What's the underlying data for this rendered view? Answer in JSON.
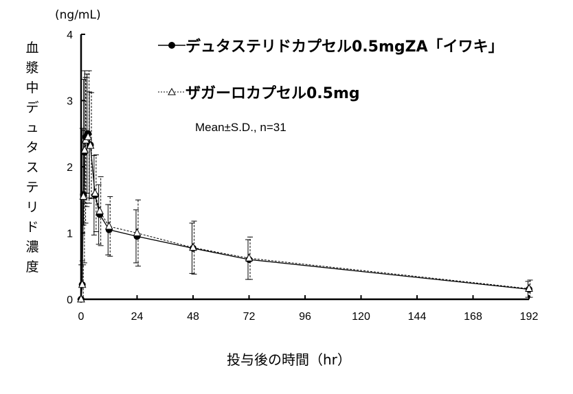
{
  "chart_data": {
    "type": "line",
    "title": "",
    "xlabel": "投与後の時間（hr）",
    "ylabel": "血漿中デュタステリド濃度",
    "yunit": "(ng/mL)",
    "xlim": [
      0,
      192
    ],
    "ylim": [
      0,
      4
    ],
    "xticks": [
      0,
      24,
      48,
      72,
      96,
      120,
      144,
      168,
      192
    ],
    "yticks": [
      0,
      1,
      2,
      3,
      4
    ],
    "annotation": "Mean±S.D., n=31",
    "legend_position": "top-right",
    "x": [
      0,
      0.5,
      1,
      1.5,
      2,
      3,
      4,
      6,
      8,
      12,
      24,
      48,
      72,
      192
    ],
    "series": [
      {
        "name": "デュタステリドカプセル0.5mgZA「イワキ」",
        "marker": "filled-circle",
        "line": "solid",
        "values": [
          0,
          0.22,
          1.58,
          2.22,
          2.45,
          2.5,
          2.33,
          1.57,
          1.28,
          1.05,
          0.95,
          0.77,
          0.6,
          0.15
        ],
        "sd": [
          0,
          0.3,
          1.0,
          1.1,
          1.0,
          0.9,
          0.8,
          0.6,
          0.45,
          0.38,
          0.4,
          0.38,
          0.3,
          0.12
        ]
      },
      {
        "name": "ザガーロカプセル0.5mg",
        "marker": "open-triangle",
        "line": "dashed",
        "values": [
          0,
          0.22,
          1.55,
          2.25,
          2.4,
          2.45,
          2.32,
          1.6,
          1.33,
          1.1,
          1.0,
          0.78,
          0.62,
          0.16
        ],
        "sd": [
          0,
          0.3,
          1.0,
          1.1,
          1.0,
          1.0,
          0.8,
          0.58,
          0.52,
          0.45,
          0.5,
          0.4,
          0.32,
          0.13
        ]
      }
    ]
  }
}
